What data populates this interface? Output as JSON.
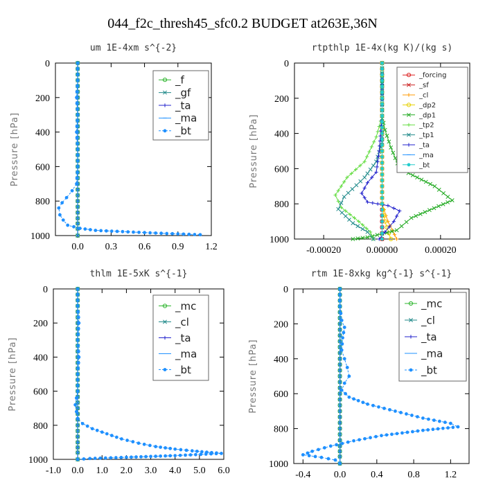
{
  "figure": {
    "title": "044_f2c_thresh45_sfc0.2  BUDGET at263E,36N"
  },
  "chart_data": [
    {
      "type": "line",
      "title": "um  1E-4xm s^{-2}",
      "xlabel": "",
      "ylabel": "Pressure [hPa]",
      "xlim": [
        -0.2,
        1.2
      ],
      "ylim": [
        1000,
        0
      ],
      "xticks": [
        "0.0",
        "0.3",
        "0.6",
        "0.9",
        "1.2"
      ],
      "yticks": [
        "0",
        "200",
        "400",
        "600",
        "800",
        "1000"
      ],
      "legend": {
        "position": "top-right",
        "font_size": 15
      },
      "series": [
        {
          "name": "_f",
          "color": "#2db52d",
          "marker": "o",
          "x": [
            0,
            0,
            0,
            0,
            0,
            0,
            0,
            0,
            0,
            0,
            0,
            0
          ],
          "y": [
            0,
            100,
            200,
            300,
            400,
            500,
            600,
            700,
            800,
            900,
            960,
            1000
          ]
        },
        {
          "name": "_gf",
          "color": "#208a8a",
          "marker": "x",
          "x": [
            0,
            0,
            0,
            0,
            0,
            0,
            0,
            0,
            0,
            0,
            0,
            0
          ],
          "y": [
            0,
            100,
            200,
            300,
            400,
            500,
            600,
            700,
            800,
            900,
            960,
            1000
          ]
        },
        {
          "name": "_ta",
          "color": "#2222cc",
          "marker": "+",
          "x": [
            0,
            0,
            0,
            0,
            0,
            0,
            0,
            0,
            0,
            0,
            0,
            0
          ],
          "y": [
            0,
            100,
            200,
            300,
            400,
            500,
            600,
            700,
            800,
            900,
            960,
            1000
          ]
        },
        {
          "name": "_ma",
          "color": "#1e90ff",
          "marker": "-",
          "x": [
            0,
            0,
            0,
            0,
            0,
            0,
            0,
            0,
            0,
            0,
            0,
            0
          ],
          "y": [
            0,
            100,
            200,
            300,
            400,
            500,
            600,
            700,
            800,
            900,
            960,
            1000
          ]
        },
        {
          "name": "_bt",
          "color": "#1e90ff",
          "marker": "dot",
          "dashed": true,
          "x": [
            0,
            0,
            -0.01,
            0,
            -0.01,
            0,
            0,
            -0.01,
            -0.05,
            -0.1,
            -0.14,
            -0.17,
            -0.16,
            -0.13,
            -0.09,
            0.02,
            0.16,
            0.5,
            0.8,
            1.1
          ],
          "y": [
            0,
            100,
            200,
            300,
            400,
            500,
            600,
            700,
            740,
            780,
            810,
            840,
            880,
            910,
            940,
            958,
            970,
            980,
            988,
            995
          ]
        }
      ]
    },
    {
      "type": "line",
      "title": "rtpthlp  1E-4x(kg K)/(kg s)",
      "xlabel": "",
      "ylabel": "Pressure [hPa]",
      "xlim": [
        -0.0003,
        0.0003
      ],
      "ylim": [
        1000,
        0
      ],
      "xticks": [
        "-0.00020",
        "0.00000",
        "0.00020"
      ],
      "yticks": [
        "0",
        "200",
        "400",
        "600",
        "800",
        "1000"
      ],
      "legend": {
        "position": "top-right",
        "font_size": 10
      },
      "series": [
        {
          "name": "_forcing",
          "color": "#dd2222",
          "marker": "o",
          "x": [
            0,
            0,
            0,
            0,
            0,
            0,
            0,
            0,
            0,
            0,
            0
          ],
          "y": [
            0,
            100,
            200,
            300,
            400,
            500,
            600,
            700,
            800,
            900,
            1000
          ]
        },
        {
          "name": "_sf",
          "color": "#cc2222",
          "marker": "x",
          "x": [
            0,
            0,
            0,
            0,
            0,
            0,
            0,
            0,
            0,
            0,
            0
          ],
          "y": [
            0,
            100,
            200,
            300,
            400,
            500,
            600,
            700,
            800,
            900,
            1000
          ]
        },
        {
          "name": "_cl",
          "color": "#ff9900",
          "marker": "+",
          "x": [
            0,
            0,
            0,
            0,
            0,
            0,
            0,
            0,
            0,
            2e-05,
            5e-05
          ],
          "y": [
            0,
            100,
            200,
            300,
            400,
            500,
            600,
            700,
            800,
            900,
            1000
          ]
        },
        {
          "name": "_dp2",
          "color": "#e6d000",
          "marker": "o",
          "x": [
            0,
            0,
            0,
            0,
            0,
            0,
            0,
            0,
            0,
            1e-05,
            3e-05
          ],
          "y": [
            0,
            100,
            200,
            300,
            400,
            500,
            600,
            700,
            800,
            900,
            1000
          ]
        },
        {
          "name": "_dp1",
          "color": "#22aa22",
          "marker": "x",
          "x": [
            0,
            0,
            0,
            1e-05,
            3e-05,
            6e-05,
            0.00012,
            0.00018,
            0.00024,
            0.0001,
            5e-05,
            -5e-05,
            -0.0001
          ],
          "y": [
            0,
            200,
            300,
            380,
            480,
            600,
            650,
            700,
            780,
            880,
            950,
            990,
            1000
          ]
        },
        {
          "name": "_tp2",
          "color": "#66dd44",
          "marker": "+",
          "x": [
            0,
            0,
            -2e-05,
            -6e-05,
            -0.00012,
            -0.00016,
            -0.00014,
            -8e-05,
            -4e-05,
            -3e-05
          ],
          "y": [
            0,
            300,
            420,
            560,
            650,
            750,
            820,
            900,
            960,
            1000
          ]
        },
        {
          "name": "_tp1",
          "color": "#208a8a",
          "marker": "x",
          "x": [
            0,
            0,
            0,
            -2e-05,
            -6e-05,
            -0.00013,
            -0.00015,
            -0.0001,
            -5e-05,
            -3e-05
          ],
          "y": [
            0,
            300,
            450,
            560,
            650,
            760,
            830,
            910,
            960,
            1000
          ]
        },
        {
          "name": "_ta",
          "color": "#2222cc",
          "marker": "+",
          "x": [
            0,
            0,
            -1e-05,
            -2e-05,
            -5e-05,
            -7e-05,
            -5e-05,
            2e-05,
            6e-05,
            4e-05,
            1e-05,
            -1e-05
          ],
          "y": [
            0,
            300,
            500,
            620,
            680,
            740,
            790,
            810,
            840,
            900,
            960,
            1000
          ]
        },
        {
          "name": "_ma",
          "color": "#1e90ff",
          "marker": "-",
          "x": [
            0,
            0,
            0,
            0,
            0,
            0,
            0,
            0,
            0,
            0,
            0
          ],
          "y": [
            0,
            100,
            200,
            300,
            400,
            500,
            600,
            700,
            800,
            900,
            1000
          ]
        },
        {
          "name": "_bt",
          "color": "#22cccc",
          "marker": "dot",
          "x": [
            0,
            0,
            0,
            0,
            0,
            0,
            0,
            0,
            0,
            0,
            0
          ],
          "y": [
            0,
            100,
            200,
            300,
            400,
            500,
            600,
            700,
            800,
            900,
            1000
          ]
        }
      ]
    },
    {
      "type": "line",
      "title": "thlm  1E-5xK s^{-1}",
      "xlabel": "",
      "ylabel": "Pressure [hPa]",
      "xlim": [
        -1.0,
        6.0
      ],
      "ylim": [
        1000,
        0
      ],
      "xticks": [
        "-1.0",
        "0.0",
        "1.0",
        "2.0",
        "3.0",
        "4.0",
        "5.0",
        "6.0"
      ],
      "yticks": [
        "0",
        "200",
        "400",
        "600",
        "800",
        "1000"
      ],
      "legend": {
        "position": "top-right",
        "font_size": 15
      },
      "series": [
        {
          "name": "_mc",
          "color": "#2db52d",
          "marker": "o",
          "x": [
            0,
            0,
            0,
            0,
            0,
            0,
            0,
            0,
            0,
            0,
            0,
            0
          ],
          "y": [
            0,
            100,
            200,
            300,
            400,
            500,
            600,
            700,
            800,
            900,
            960,
            1000
          ]
        },
        {
          "name": "_cl",
          "color": "#208a8a",
          "marker": "x",
          "x": [
            0,
            0,
            0,
            0,
            0,
            0,
            0,
            0,
            0,
            0,
            0,
            0
          ],
          "y": [
            0,
            100,
            200,
            300,
            400,
            500,
            600,
            700,
            800,
            900,
            960,
            1000
          ]
        },
        {
          "name": "_ta",
          "color": "#2222cc",
          "marker": "+",
          "x": [
            0,
            0,
            0,
            0,
            0,
            0,
            0,
            0,
            0,
            0,
            0,
            0
          ],
          "y": [
            0,
            100,
            200,
            300,
            400,
            500,
            600,
            700,
            800,
            900,
            960,
            1000
          ]
        },
        {
          "name": "_ma",
          "color": "#1e90ff",
          "marker": "-",
          "x": [
            0,
            0,
            0,
            0,
            0,
            0,
            0,
            0,
            0,
            0,
            0,
            0
          ],
          "y": [
            0,
            100,
            200,
            300,
            400,
            500,
            600,
            700,
            800,
            900,
            960,
            1000
          ]
        },
        {
          "name": "_bt",
          "color": "#1e90ff",
          "marker": "dot",
          "dashed": true,
          "x": [
            0,
            0,
            0.05,
            0,
            0.05,
            0,
            0,
            -0.1,
            -0.05,
            0,
            0.2,
            0.6,
            1.2,
            1.8,
            2.5,
            3.2,
            4.0,
            4.7,
            5.3,
            5.9,
            4.0,
            2.0,
            0.5,
            0
          ],
          "y": [
            0,
            100,
            200,
            300,
            400,
            500,
            600,
            680,
            720,
            760,
            790,
            820,
            850,
            880,
            905,
            925,
            940,
            950,
            958,
            965,
            978,
            988,
            995,
            1000
          ]
        }
      ]
    },
    {
      "type": "line",
      "title": "rtm  1E-8xkg kg^{-1} s^{-1}",
      "xlabel": "",
      "ylabel": "Pressure [hPa]",
      "xlim": [
        -0.5,
        1.4
      ],
      "ylim": [
        1000,
        0
      ],
      "xticks": [
        "-0.4",
        "0.0",
        "0.4",
        "0.8",
        "1.2"
      ],
      "yticks": [
        "0",
        "200",
        "400",
        "600",
        "800",
        "1000"
      ],
      "legend": {
        "position": "top-right",
        "font_size": 15
      },
      "series": [
        {
          "name": "_mc",
          "color": "#2db52d",
          "marker": "o",
          "x": [
            0,
            0,
            0,
            0,
            0,
            0,
            0,
            0,
            0,
            0,
            0,
            0
          ],
          "y": [
            0,
            100,
            200,
            300,
            400,
            500,
            600,
            700,
            800,
            900,
            960,
            1000
          ]
        },
        {
          "name": "_cl",
          "color": "#208a8a",
          "marker": "x",
          "x": [
            0,
            0,
            0,
            0,
            0,
            0,
            0,
            0,
            0,
            0,
            0,
            0
          ],
          "y": [
            0,
            100,
            200,
            300,
            400,
            500,
            600,
            700,
            800,
            900,
            960,
            1000
          ]
        },
        {
          "name": "_ta",
          "color": "#2222cc",
          "marker": "+",
          "x": [
            0,
            0,
            0,
            0,
            0,
            0,
            0,
            0,
            0,
            0,
            0,
            0
          ],
          "y": [
            0,
            100,
            200,
            300,
            400,
            500,
            600,
            700,
            800,
            900,
            960,
            1000
          ]
        },
        {
          "name": "_ma",
          "color": "#1e90ff",
          "marker": "-",
          "x": [
            0,
            0,
            0,
            0,
            0,
            0,
            0,
            0,
            0,
            0,
            0,
            0
          ],
          "y": [
            0,
            100,
            200,
            300,
            400,
            500,
            600,
            700,
            800,
            900,
            960,
            1000
          ]
        },
        {
          "name": "_bt",
          "color": "#1e90ff",
          "marker": "dot",
          "dashed": true,
          "x": [
            0,
            0,
            0.02,
            0.05,
            0.03,
            0.02,
            0.05,
            0.08,
            0.1,
            0.05,
            0.02,
            0.1,
            0.3,
            0.6,
            0.9,
            1.2,
            1.28,
            0.9,
            0.45,
            0.15,
            -0.1,
            -0.3,
            -0.4,
            -0.2,
            -0.05,
            0
          ],
          "y": [
            0,
            100,
            180,
            220,
            280,
            350,
            400,
            450,
            500,
            540,
            580,
            620,
            660,
            700,
            740,
            770,
            790,
            810,
            840,
            870,
            900,
            930,
            950,
            965,
            980,
            1000
          ]
        }
      ]
    }
  ]
}
